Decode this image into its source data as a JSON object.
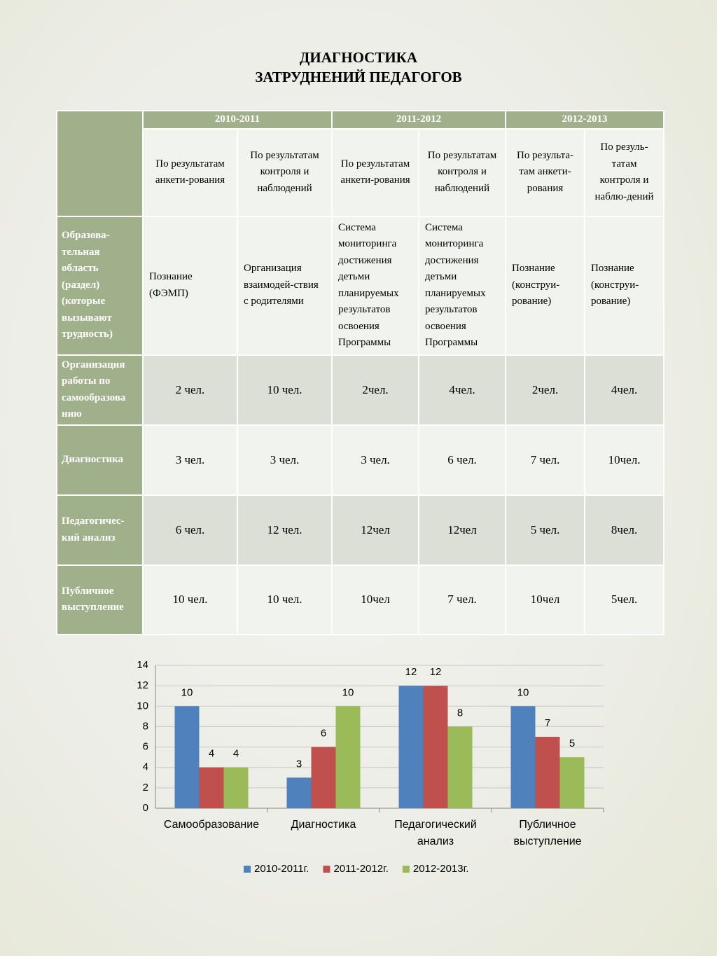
{
  "title": "ДИАГНОСТИКА ЗАТРУДНЕНИЙ ПЕДАГОГОВ",
  "table": {
    "years": [
      "2010-2011",
      "2011-2012",
      "2012-2013"
    ],
    "subheaders": [
      "По результатам анкети-рования",
      "По результатам контроля и наблюдений",
      "По результатам анкети-рования",
      "По результатам контроля и наблюдений",
      "По результа-там анкети-рования",
      "По резуль-татам контроля и наблю-дений"
    ],
    "rows": [
      {
        "label": "Образова-тельная область (раздел) (которые вызывают трудность)",
        "cells": [
          "Познание (ФЭМП)",
          "Организация взаимодей-ствия с родителями",
          "Система мониторинга достижения детьми планируемых результатов освоения Программы",
          "Система мониторинга достижения детьми планируемых результатов освоения Программы",
          "Познание (конструи-рование)",
          "Познание (конструи-рование)"
        ]
      },
      {
        "label": "Организация работы по самообразова нию",
        "cells": [
          "2 чел.",
          "10 чел.",
          "2чел.",
          "4чел.",
          "2чел.",
          "4чел."
        ]
      },
      {
        "label": "Диагностика",
        "cells": [
          "3 чел.",
          "3 чел.",
          "3 чел.",
          "6 чел.",
          "7 чел.",
          "10чел."
        ]
      },
      {
        "label": "Педагогичес-кий анализ",
        "cells": [
          "6 чел.",
          "12 чел.",
          "12чел",
          "12чел",
          "5 чел.",
          "8чел."
        ]
      },
      {
        "label": "Публичное выступление",
        "cells": [
          "10 чел.",
          "10 чел.",
          "10чел",
          "7 чел.",
          "10чел",
          "5чел."
        ]
      }
    ]
  },
  "chart_data": {
    "type": "bar",
    "categories": [
      "Самообразование",
      "Диагностика",
      "Педагогический анализ",
      "Публичное выступление"
    ],
    "series": [
      {
        "name": "2010-2011г.",
        "color": "#4f81bd",
        "values": [
          10,
          3,
          12,
          10
        ]
      },
      {
        "name": "2011-2012г.",
        "color": "#c0504d",
        "values": [
          4,
          6,
          12,
          7
        ]
      },
      {
        "name": "2012-2013г.",
        "color": "#9bbb59",
        "values": [
          4,
          10,
          8,
          5
        ]
      }
    ],
    "ylim": [
      0,
      14
    ],
    "yticks": [
      0,
      2,
      4,
      6,
      8,
      10,
      12,
      14
    ],
    "grid": true,
    "legend": "bottom"
  }
}
